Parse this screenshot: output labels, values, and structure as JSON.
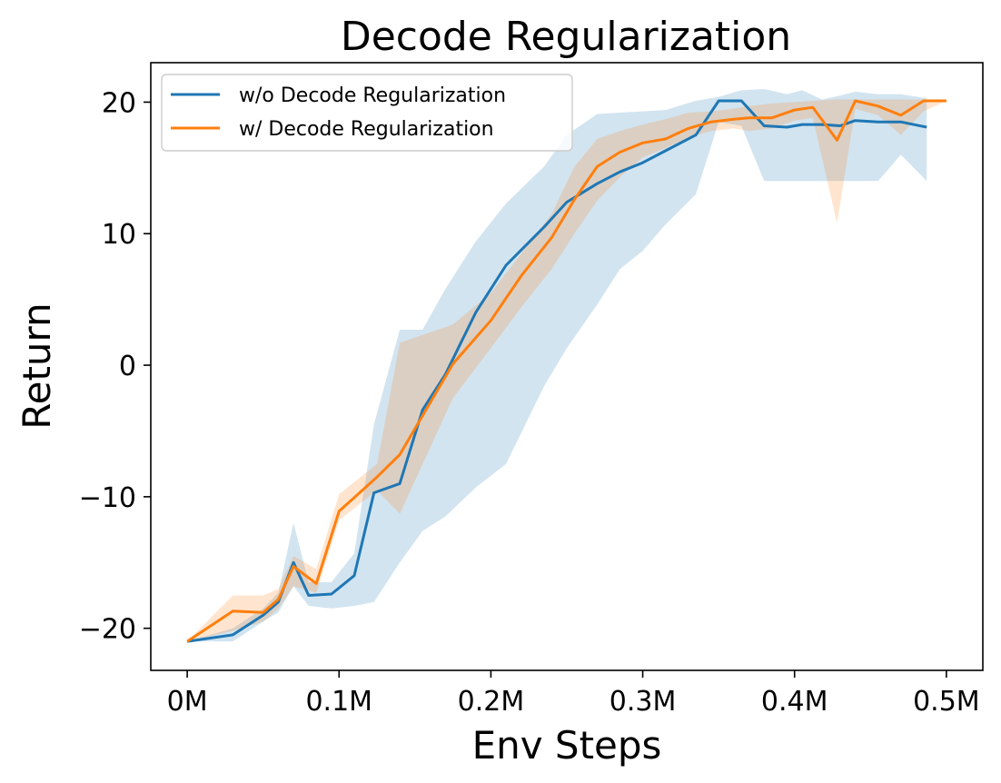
{
  "chart_data": {
    "type": "line",
    "title": "Decode Regularization",
    "xlabel": "Env Steps",
    "ylabel": "Return",
    "xlim": [
      -0.024,
      0.524
    ],
    "ylim": [
      -23.2,
      23.0
    ],
    "x_ticks": [
      0,
      0.1,
      0.2,
      0.3,
      0.4,
      0.5
    ],
    "x_tick_labels": [
      "0M",
      "0.1M",
      "0.2M",
      "0.3M",
      "0.4M",
      "0.5M"
    ],
    "y_ticks": [
      -20,
      -10,
      0,
      10,
      20
    ],
    "y_tick_labels": [
      "−20",
      "−10",
      "0",
      "10",
      "20"
    ],
    "legend_position": "top-left",
    "series": [
      {
        "name": "w/o Decode Regularization",
        "color": "#1f77b4",
        "band_color": "#1f77b4",
        "band_opacity": 0.2,
        "x": [
          0,
          0.03,
          0.05,
          0.06,
          0.07,
          0.08,
          0.095,
          0.11,
          0.123,
          0.14,
          0.155,
          0.17,
          0.19,
          0.21,
          0.235,
          0.25,
          0.27,
          0.285,
          0.3,
          0.315,
          0.335,
          0.35,
          0.365,
          0.38,
          0.395,
          0.405,
          0.418,
          0.43,
          0.44,
          0.455,
          0.47,
          0.487
        ],
        "y": [
          -21,
          -20.5,
          -19,
          -18,
          -15,
          -17.5,
          -17.4,
          -16,
          -9.7,
          -9,
          -3.4,
          -0.7,
          4,
          7.6,
          10.5,
          12.4,
          13.8,
          14.7,
          15.4,
          16.3,
          17.5,
          20.1,
          20.1,
          18.2,
          18.1,
          18.3,
          18.3,
          18.2,
          18.6,
          18.5,
          18.5,
          18.1
        ],
        "lower": [
          -21,
          -21,
          -19.5,
          -18.8,
          -16.8,
          -18.3,
          -18.5,
          -18.3,
          -18,
          -15,
          -12.6,
          -11.5,
          -9.3,
          -7.5,
          -1.6,
          1.3,
          4.6,
          7.3,
          8.7,
          10.7,
          13,
          18.5,
          18.2,
          14,
          14,
          14,
          14,
          14,
          14,
          14,
          16,
          14
        ],
        "upper": [
          -21,
          -20,
          -18.5,
          -17.3,
          -12,
          -16.5,
          -16.5,
          -14.3,
          -4.5,
          2.7,
          2.7,
          5.8,
          9.4,
          12.3,
          15.1,
          17.5,
          19.1,
          19.2,
          19.3,
          19.4,
          20.1,
          20.4,
          20.9,
          21,
          20.6,
          20.9,
          20.2,
          20.5,
          20.8,
          20.6,
          20.6,
          20.3
        ]
      },
      {
        "name": "w/ Decode Regularization",
        "color": "#ff7f0e",
        "band_color": "#ff7f0e",
        "band_opacity": 0.2,
        "x": [
          0,
          0.03,
          0.05,
          0.06,
          0.07,
          0.085,
          0.1,
          0.125,
          0.14,
          0.175,
          0.2,
          0.22,
          0.24,
          0.255,
          0.27,
          0.285,
          0.3,
          0.315,
          0.33,
          0.345,
          0.36,
          0.37,
          0.385,
          0.4,
          0.412,
          0.428,
          0.44,
          0.455,
          0.47,
          0.485,
          0.5
        ],
        "y": [
          -21,
          -18.7,
          -18.8,
          -17.8,
          -15.3,
          -16.6,
          -11.1,
          -8.5,
          -6.8,
          0.1,
          3.4,
          6.8,
          9.7,
          12.6,
          15.1,
          16.2,
          16.9,
          17.2,
          18,
          18.5,
          18.7,
          18.8,
          18.8,
          19.4,
          19.6,
          17.1,
          20.1,
          19.7,
          19,
          20.1,
          20.1
        ],
        "lower": [
          -21,
          -20.2,
          -19.5,
          -18.5,
          -16.8,
          -17.3,
          -11.8,
          -9.5,
          -11.3,
          -2.5,
          1.3,
          4.4,
          7.3,
          10,
          12.5,
          14.3,
          15.8,
          16.5,
          17.3,
          17.8,
          18,
          17.8,
          18,
          18.6,
          18.8,
          10.8,
          19.5,
          19,
          17.5,
          19.3,
          20.1
        ],
        "upper": [
          -21,
          -17.5,
          -17.5,
          -17,
          -14.5,
          -15.5,
          -9.8,
          -7.5,
          1.7,
          3.1,
          5.5,
          8.5,
          11.5,
          15.1,
          17.2,
          17.8,
          18.3,
          18.7,
          19.2,
          19.3,
          19.5,
          19.7,
          19.9,
          20,
          20.1,
          20.2,
          20.2,
          20.2,
          20.2,
          20.2,
          20.1
        ]
      }
    ]
  }
}
